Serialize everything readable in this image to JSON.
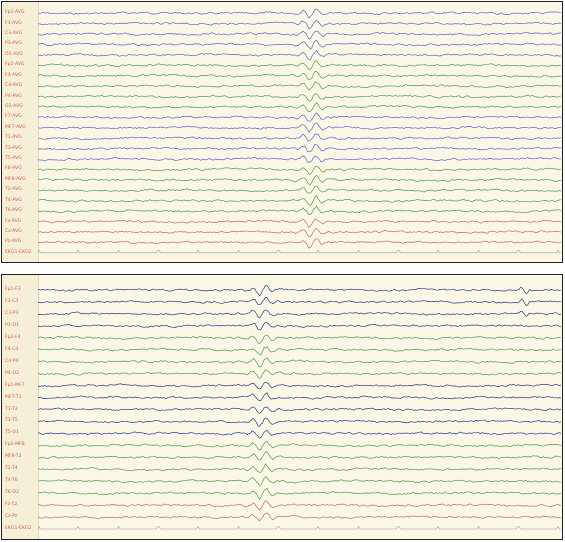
{
  "colors": {
    "background": "#fbf6e6",
    "label_text": "#d05a5a",
    "blue": "#5a66c8",
    "blue_dark": "#2b3a8a",
    "green": "#4a9e4a",
    "red": "#c06a6a",
    "timeline": "#9a9a9a"
  },
  "panels": [
    {
      "channels": [
        {
          "label": "Fp1-AVG",
          "color": "blue"
        },
        {
          "label": "F3-AVG",
          "color": "blue"
        },
        {
          "label": "C3-AVG",
          "color": "blue"
        },
        {
          "label": "P3-AVG",
          "color": "blue"
        },
        {
          "label": "O1-AVG",
          "color": "blue"
        },
        {
          "label": "Fp2-AVG",
          "color": "green"
        },
        {
          "label": "F4-AVG",
          "color": "green"
        },
        {
          "label": "C4-AVG",
          "color": "green"
        },
        {
          "label": "P4-AVG",
          "color": "green"
        },
        {
          "label": "O2-AVG",
          "color": "green"
        },
        {
          "label": "F7-AVG",
          "color": "blue"
        },
        {
          "label": "MF7-AVG",
          "color": "blue"
        },
        {
          "label": "T1-AVG",
          "color": "blue"
        },
        {
          "label": "T3-AVG",
          "color": "blue"
        },
        {
          "label": "T5-AVG",
          "color": "blue"
        },
        {
          "label": "F8-AVG",
          "color": "green"
        },
        {
          "label": "MF8-AVG",
          "color": "green"
        },
        {
          "label": "T2-AVG",
          "color": "green"
        },
        {
          "label": "T4-AVG",
          "color": "green"
        },
        {
          "label": "T6-AVG",
          "color": "green"
        },
        {
          "label": "Fz-AVG",
          "color": "red"
        },
        {
          "label": "Cz-AVG",
          "color": "red"
        },
        {
          "label": "Pz-AVG",
          "color": "red"
        },
        {
          "label": "EKG1-EKG2",
          "color": "timeline"
        }
      ]
    },
    {
      "channels": [
        {
          "label": "Fp1-F3",
          "color": "blue_dark"
        },
        {
          "label": "F3-C3",
          "color": "blue_dark"
        },
        {
          "label": "C3-P3",
          "color": "blue_dark"
        },
        {
          "label": "P3-O1",
          "color": "blue_dark"
        },
        {
          "label": "Fp2-F4",
          "color": "green"
        },
        {
          "label": "F4-C4",
          "color": "green"
        },
        {
          "label": "C4-P4",
          "color": "green"
        },
        {
          "label": "P4-O2",
          "color": "green"
        },
        {
          "label": "Fp1-MF7",
          "color": "blue_dark"
        },
        {
          "label": "MF7-T1",
          "color": "blue_dark"
        },
        {
          "label": "T1-T3",
          "color": "blue_dark"
        },
        {
          "label": "T3-T5",
          "color": "blue_dark"
        },
        {
          "label": "T5-O1",
          "color": "blue_dark"
        },
        {
          "label": "Fp2-MF8",
          "color": "green"
        },
        {
          "label": "MF8-T2",
          "color": "green"
        },
        {
          "label": "T2-T4",
          "color": "green"
        },
        {
          "label": "T4-T6",
          "color": "green"
        },
        {
          "label": "T6-O2",
          "color": "green"
        },
        {
          "label": "Fz-Cz",
          "color": "red"
        },
        {
          "label": "Cz-Pz",
          "color": "red"
        },
        {
          "label": "EKG1-EKG2",
          "color": "timeline"
        }
      ]
    }
  ]
}
